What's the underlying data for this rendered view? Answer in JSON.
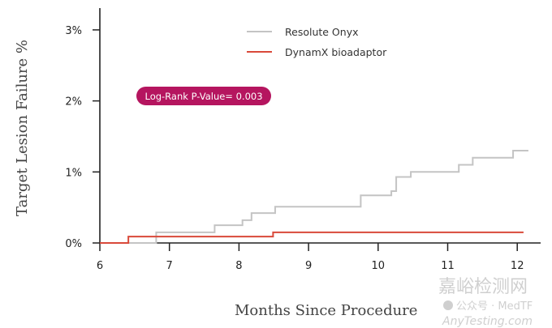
{
  "chart_data": {
    "type": "line",
    "subtype": "kaplan-meier-step",
    "xlabel": "Months Since Procedure",
    "ylabel": "Target Lesion Failure %",
    "xlim": [
      6,
      12.2
    ],
    "ylim": [
      0,
      3
    ],
    "x_ticks": [
      "6",
      "7",
      "8",
      "9",
      "10",
      "11",
      "12"
    ],
    "y_ticks": [
      "0%",
      "1%",
      "2%",
      "3%"
    ],
    "grid": false,
    "legend_position": "top-center",
    "annotation": "Log-Rank P-Value= 0.003",
    "series": [
      {
        "name": "Resolute Onyx",
        "color": "#c4c4c4",
        "x": [
          6,
          6.81,
          7.65,
          8.05,
          8.18,
          8.52,
          9.75,
          10.19,
          10.26,
          10.47,
          11.16,
          11.36,
          11.94,
          12.16
        ],
        "y": [
          0,
          0.15,
          0.25,
          0.32,
          0.42,
          0.51,
          0.67,
          0.73,
          0.93,
          1.0,
          1.1,
          1.2,
          1.3,
          1.3
        ]
      },
      {
        "name": "DynamX bioadaptor",
        "color": "#d9493a",
        "x": [
          6,
          6.41,
          8.49,
          12.09
        ],
        "y": [
          0,
          0.09,
          0.15,
          0.15
        ]
      }
    ]
  },
  "annotation_color": "#b5155f",
  "watermark": {
    "line1": "嘉峪检测网",
    "line2": "AnyTesting.com",
    "account": "公众号 · MedTF"
  }
}
